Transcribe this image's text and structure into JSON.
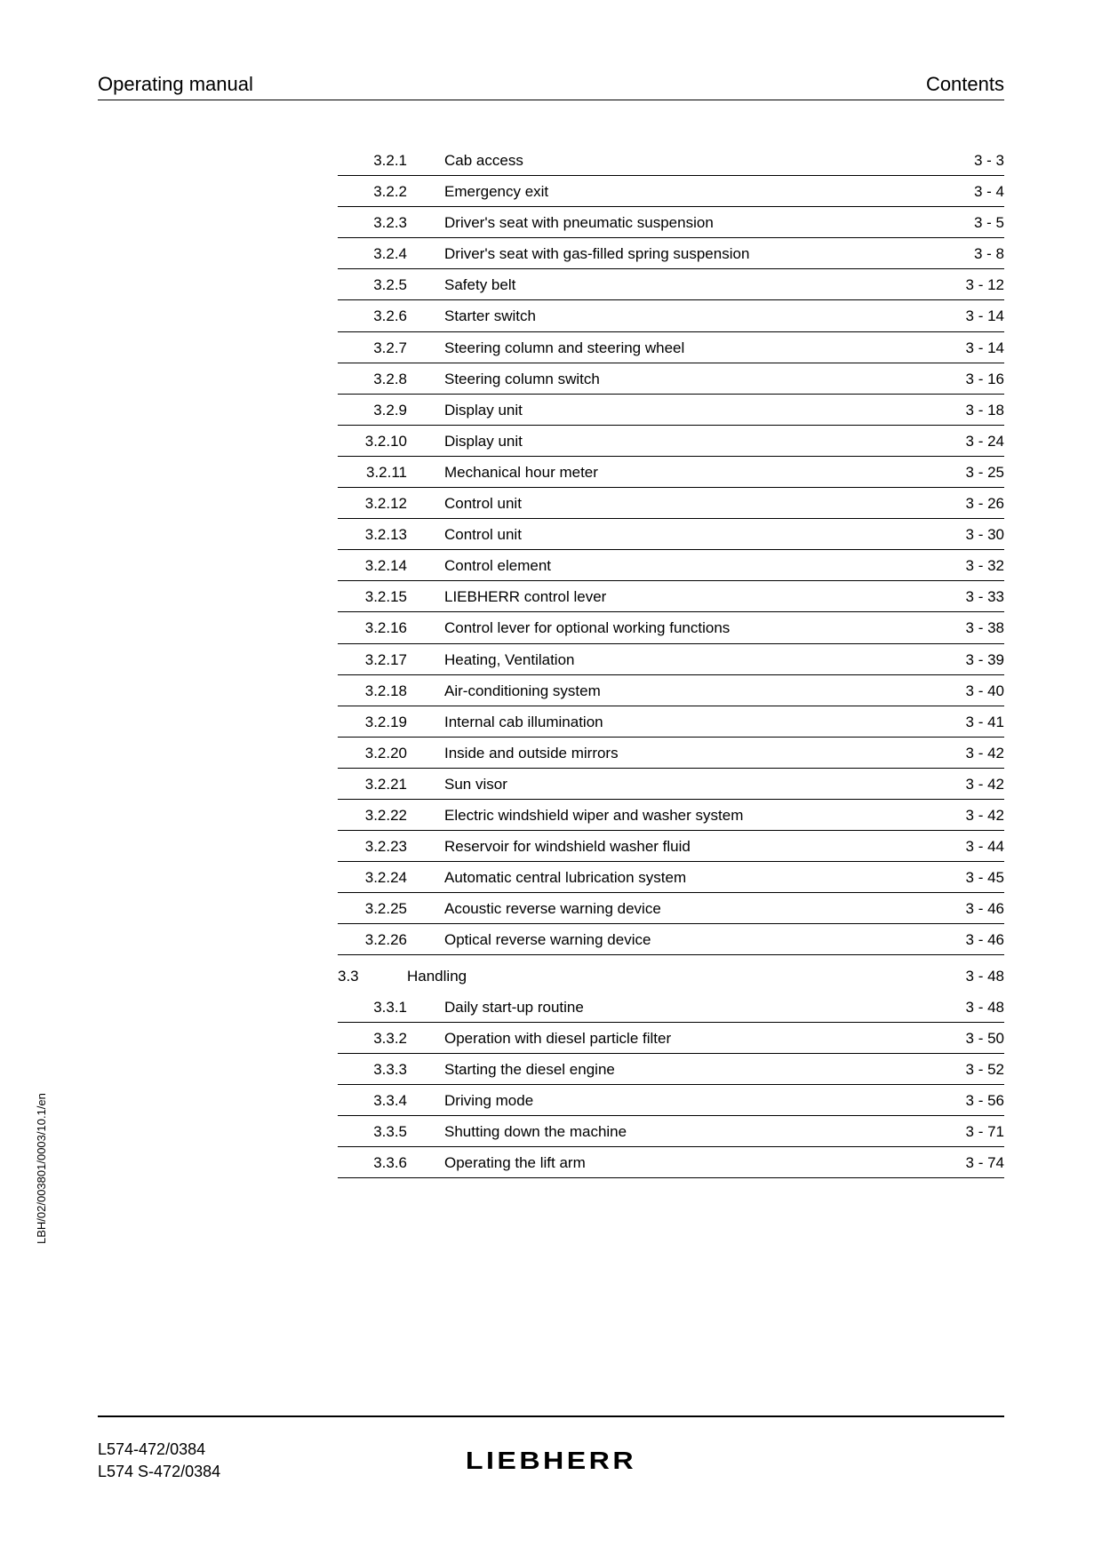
{
  "header": {
    "left": "Operating manual",
    "right": "Contents"
  },
  "toc": [
    {
      "type": "item",
      "num": "3.2.1",
      "title": "Cab access",
      "page": "3 - 3"
    },
    {
      "type": "item",
      "num": "3.2.2",
      "title": "Emergency exit",
      "page": "3 - 4"
    },
    {
      "type": "item",
      "num": "3.2.3",
      "title": "Driver's seat with pneumatic suspension",
      "page": "3 - 5"
    },
    {
      "type": "item",
      "num": "3.2.4",
      "title": "Driver's seat with gas-filled spring suspension",
      "page": "3 - 8"
    },
    {
      "type": "item",
      "num": "3.2.5",
      "title": "Safety belt",
      "page": "3 - 12"
    },
    {
      "type": "item",
      "num": "3.2.6",
      "title": "Starter switch",
      "page": "3 - 14"
    },
    {
      "type": "item",
      "num": "3.2.7",
      "title": "Steering column and steering wheel",
      "page": "3 - 14"
    },
    {
      "type": "item",
      "num": "3.2.8",
      "title": "Steering column switch",
      "page": "3 - 16"
    },
    {
      "type": "item",
      "num": "3.2.9",
      "title": "Display unit",
      "page": "3 - 18"
    },
    {
      "type": "item",
      "num": "3.2.10",
      "title": "Display unit",
      "page": "3 - 24"
    },
    {
      "type": "item",
      "num": "3.2.11",
      "title": "Mechanical hour meter",
      "page": "3 - 25"
    },
    {
      "type": "item",
      "num": "3.2.12",
      "title": "Control unit",
      "page": "3 - 26"
    },
    {
      "type": "item",
      "num": "3.2.13",
      "title": "Control unit",
      "page": "3 - 30"
    },
    {
      "type": "item",
      "num": "3.2.14",
      "title": "Control element",
      "page": "3 - 32"
    },
    {
      "type": "item",
      "num": "3.2.15",
      "title": "LIEBHERR control lever",
      "page": "3 - 33"
    },
    {
      "type": "item",
      "num": "3.2.16",
      "title": "Control lever for optional working functions",
      "page": "3 - 38"
    },
    {
      "type": "item",
      "num": "3.2.17",
      "title": "Heating, Ventilation",
      "page": "3 - 39"
    },
    {
      "type": "item",
      "num": "3.2.18",
      "title": "Air-conditioning system",
      "page": "3 - 40"
    },
    {
      "type": "item",
      "num": "3.2.19",
      "title": "Internal cab illumination",
      "page": "3 - 41"
    },
    {
      "type": "item",
      "num": "3.2.20",
      "title": "Inside and outside mirrors",
      "page": "3 - 42"
    },
    {
      "type": "item",
      "num": "3.2.21",
      "title": "Sun visor",
      "page": "3 - 42"
    },
    {
      "type": "item",
      "num": "3.2.22",
      "title": "Electric windshield wiper and washer system",
      "page": "3 - 42"
    },
    {
      "type": "item",
      "num": "3.2.23",
      "title": "Reservoir for windshield washer fluid",
      "page": "3 - 44"
    },
    {
      "type": "item",
      "num": "3.2.24",
      "title": "Automatic central lubrication system",
      "page": "3 - 45"
    },
    {
      "type": "item",
      "num": "3.2.25",
      "title": "Acoustic reverse warning device",
      "page": "3 - 46"
    },
    {
      "type": "item",
      "num": "3.2.26",
      "title": "Optical reverse warning device",
      "page": "3 - 46"
    },
    {
      "type": "section",
      "num": "3.3",
      "title": "Handling",
      "page": "3 - 48"
    },
    {
      "type": "item",
      "num": "3.3.1",
      "title": "Daily start-up routine",
      "page": "3 - 48"
    },
    {
      "type": "item",
      "num": "3.3.2",
      "title": "Operation with diesel particle filter",
      "page": "3 - 50"
    },
    {
      "type": "item",
      "num": "3.3.3",
      "title": "Starting the diesel engine",
      "page": "3 - 52"
    },
    {
      "type": "item",
      "num": "3.3.4",
      "title": "Driving mode",
      "page": "3 - 56"
    },
    {
      "type": "item",
      "num": "3.3.5",
      "title": "Shutting down the machine",
      "page": "3 - 71"
    },
    {
      "type": "item",
      "num": "3.3.6",
      "title": "Operating the lift arm",
      "page": "3 - 74"
    }
  ],
  "sidebar": "LBH/02/003801/0003/10.1/en",
  "footer": {
    "line1": "L574-472/0384",
    "line2": "L574 S-472/0384",
    "brand": "LIEBHERR"
  },
  "styles": {
    "font_family": "Arial, Helvetica, sans-serif",
    "text_color": "#000000",
    "background": "#ffffff",
    "header_fontsize": 22,
    "toc_fontsize": 17,
    "footer_fontsize": 18,
    "brand_fontsize": 28,
    "sidebar_fontsize": 13,
    "rule_color": "#000000"
  }
}
